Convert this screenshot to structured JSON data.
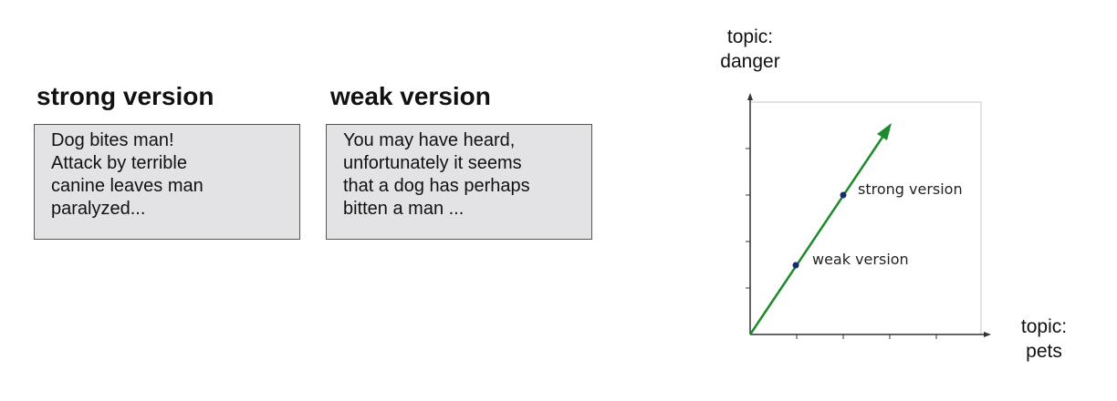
{
  "panels": [
    {
      "heading": "strong version",
      "lines": [
        "Dog bites man!",
        "Attack by terrible",
        "canine leaves man",
        "paralyzed..."
      ]
    },
    {
      "heading": "weak version",
      "lines": [
        "You may have heard,",
        "unfortunately it seems",
        "that a dog has perhaps",
        "bitten a man ..."
      ]
    }
  ],
  "plot": {
    "y_axis_title": [
      "topic:",
      "danger"
    ],
    "x_axis_title": [
      "topic:",
      "pets"
    ],
    "points": [
      {
        "label": "weak version"
      },
      {
        "label": "strong version"
      }
    ],
    "colors": {
      "vector": "#1e8a2e",
      "point": "#1a2a6c",
      "box_fill": "#e3e3e5",
      "box_border": "#555555"
    }
  }
}
